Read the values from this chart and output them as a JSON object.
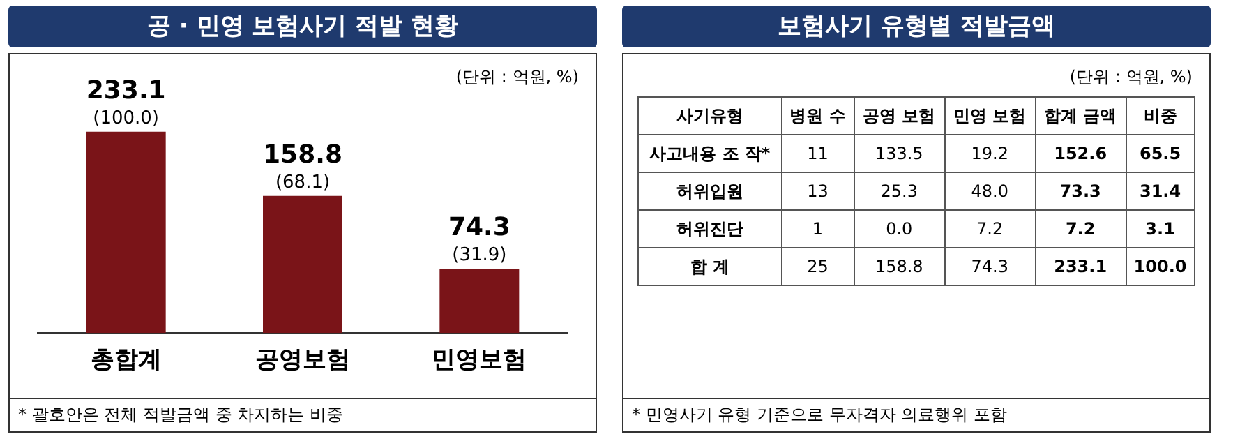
{
  "chart_data": [
    {
      "type": "bar",
      "title": "공 · 민영 보험사기 적발 현황",
      "categories": [
        "총합계",
        "공영보험",
        "민영보험"
      ],
      "values": [
        233.1,
        158.8,
        74.3
      ],
      "color": "#7a1418",
      "data_labels": true,
      "grid": false,
      "legend": false,
      "annotations": [
        {
          "text": "(100.0)",
          "x": "총합계",
          "y": 233.1
        },
        {
          "text": "(68.1)",
          "x": "공영보험",
          "y": 158.8
        },
        {
          "text": "(31.9)",
          "x": "민영보험",
          "y": 74.3
        },
        "(단위 : 억원, %)",
        "* 괄호안은 전체 적발금액 중 차지하는 비중"
      ]
    },
    {
      "type": "heatmap",
      "title": "보험사기 유형별 적발금액",
      "ylabel": "사기유형",
      "categories": [
        "병원 수",
        "공영 보험",
        "민영 보험",
        "합계 금액",
        "비중"
      ],
      "y_categories": [
        "사고내용 조 작*",
        "허위입원",
        "허위진단",
        "합 계"
      ],
      "cells": [
        [
          11,
          133.5,
          19.2,
          152.6,
          65.5
        ],
        [
          13,
          25.3,
          48.0,
          73.3,
          31.4
        ],
        [
          1,
          0.0,
          7.2,
          7.2,
          3.1
        ],
        [
          25,
          158.8,
          74.3,
          233.1,
          100.0
        ]
      ],
      "cell_labels": [
        [
          "11",
          "133.5",
          "19.2",
          "152.6",
          "65.5"
        ],
        [
          "13",
          "25.3",
          "48.0",
          "73.3",
          "31.4"
        ],
        [
          "1",
          "0.0",
          "7.2",
          "7.2",
          "3.1"
        ],
        [
          "25",
          "158.8",
          "74.3",
          "233.1",
          "100.0"
        ]
      ],
      "annotations": [
        "(단위 : 억원, %)",
        "* 민영사기 유형 기준으로 무자격자 의료행위 포함"
      ]
    }
  ]
}
